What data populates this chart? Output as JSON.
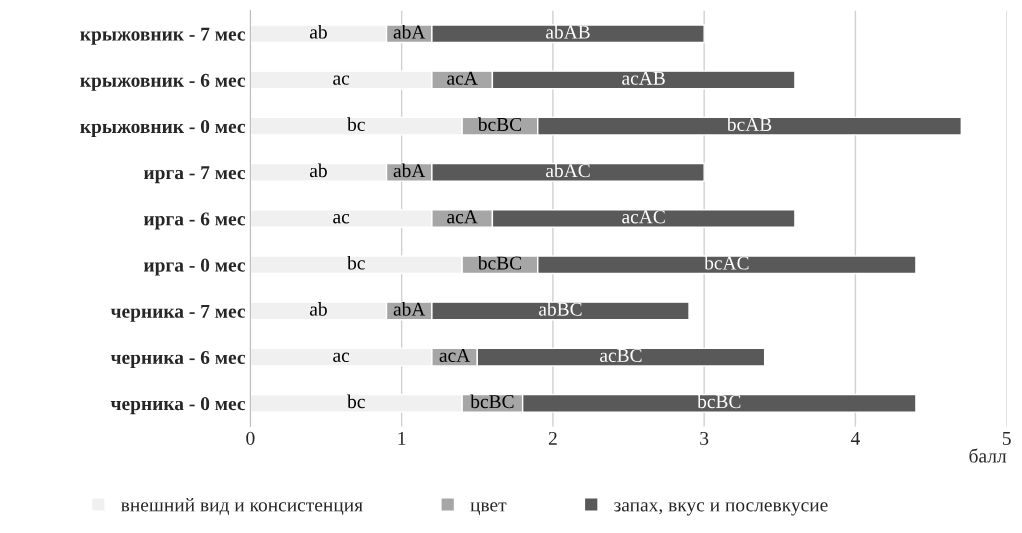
{
  "chart_data": {
    "type": "bar",
    "orientation": "horizontal",
    "stacked": true,
    "categories": [
      "крыжовник - 7 мес",
      "крыжовник - 6 мес",
      "крыжовник - 0 мес",
      "ирга - 7 мес",
      "ирга - 6 мес",
      "ирга - 0 мес",
      "черника - 7 мес",
      "черника - 6 мес",
      "черника - 0 мес"
    ],
    "series": [
      {
        "name": "внешний вид и консистенция",
        "color": "#f0f0f0",
        "values": [
          0.9,
          1.2,
          1.4,
          0.9,
          1.2,
          1.4,
          0.9,
          1.2,
          1.4
        ],
        "value_labels": [
          "ab",
          "ac",
          "bc",
          "ab",
          "ac",
          "bc",
          "ab",
          "ac",
          "bc"
        ]
      },
      {
        "name": "цвет",
        "color": "#a6a6a6",
        "values": [
          0.3,
          0.4,
          0.5,
          0.3,
          0.4,
          0.5,
          0.3,
          0.3,
          0.4
        ],
        "value_labels": [
          "abA",
          "acA",
          "bcBC",
          "abA",
          "acA",
          "bcBC",
          "abA",
          "acA",
          "bcBC"
        ]
      },
      {
        "name": "запах, вкус и послевкусие",
        "color": "#595959",
        "values": [
          1.8,
          2.0,
          2.8,
          1.8,
          2.0,
          2.5,
          1.7,
          1.9,
          2.6
        ],
        "value_labels": [
          "abAB",
          "acAB",
          "bcAB",
          "abAC",
          "acAC",
          "bcAC",
          "abBC",
          "acBC",
          "bcBC"
        ]
      }
    ],
    "xlim": [
      0,
      5
    ],
    "xticks": [
      0,
      1,
      2,
      3,
      4,
      5
    ],
    "xlabel": "балл",
    "grid": "x",
    "legend": "bottom"
  }
}
